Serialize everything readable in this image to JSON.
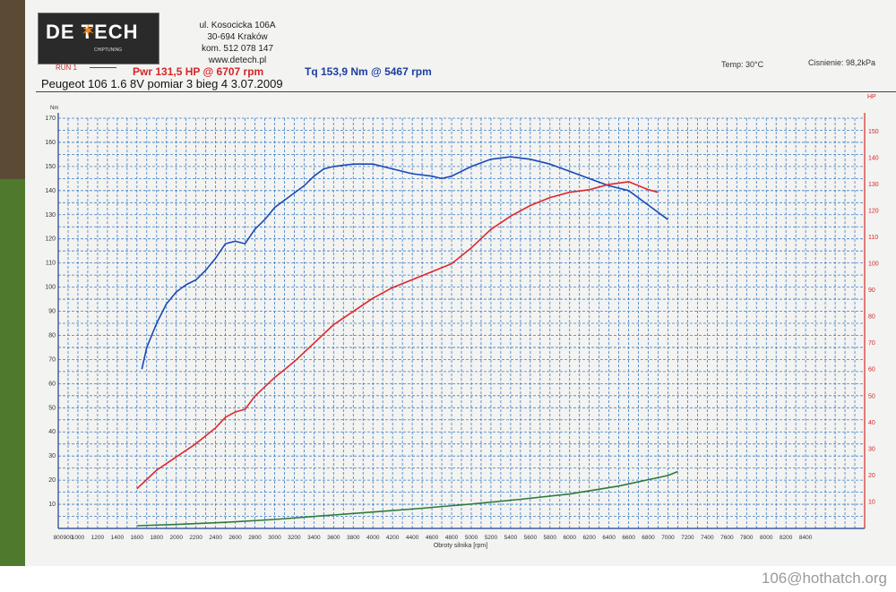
{
  "header": {
    "logo_text": "DE TECH",
    "logo_sub": "CHIPTUNING",
    "address": [
      "ul. Kosocicka 106A",
      "30-694 Kraków",
      "kom. 512 078 147",
      "www.detech.pl"
    ],
    "run_label": "RUN 1",
    "power_peak": "Pwr 131,5 HP @ 6707 rpm",
    "torque_peak": "Tq 153,9 Nm @ 5467 rpm",
    "temperature": "Temp: 30°C",
    "pressure": "Cisnienie: 98,2kPa",
    "car_info": "Peugeot 106 1.6 8V  pomiar 3 bieg 4   3.07.2009"
  },
  "watermark": "106@hothatch.org",
  "colors": {
    "torque": "#1a48b8",
    "power": "#e0262c",
    "loss": "#2f7a3a",
    "grid": "#3a7ec8",
    "right_axis": "#d42a2a"
  },
  "chart_data": {
    "type": "line",
    "xlabel": "Obroty silnika [rpm]",
    "ylabel_left": "Nm",
    "ylabel_right": "HP",
    "xlim": [
      800,
      9000
    ],
    "ylim_left": [
      0,
      170
    ],
    "ylim_right": [
      0,
      155
    ],
    "x_ticks": [
      800,
      900,
      1000,
      1200,
      1400,
      1600,
      1800,
      2000,
      2200,
      2400,
      2600,
      2800,
      3000,
      3200,
      3400,
      3600,
      3800,
      4000,
      4200,
      4400,
      4600,
      4800,
      5000,
      5200,
      5400,
      5600,
      5800,
      6000,
      6200,
      6400,
      6600,
      6800,
      7000,
      7200,
      7400,
      7600,
      7800,
      8000,
      8200,
      8400
    ],
    "y_ticks_left": [
      10,
      20,
      30,
      40,
      50,
      60,
      70,
      80,
      90,
      100,
      110,
      120,
      130,
      140,
      150,
      160,
      170
    ],
    "y_ticks_right": [
      10,
      20,
      30,
      40,
      50,
      60,
      70,
      80,
      90,
      100,
      110,
      120,
      130,
      140,
      150
    ],
    "series": [
      {
        "axis": "left",
        "x": [
          1650,
          1700,
          1800,
          1900,
          2000,
          2100,
          2200,
          2300,
          2400,
          2500,
          2600,
          2700,
          2800,
          2900,
          3000,
          3100,
          3200,
          3300,
          3400,
          3500,
          3600,
          3800,
          4000,
          4200,
          4400,
          4600,
          4700,
          4800,
          5000,
          5200,
          5400,
          5600,
          5800,
          6000,
          6200,
          6400,
          6600,
          6800,
          7000
        ],
        "y": [
          66,
          75,
          85,
          93,
          98,
          101,
          103,
          107,
          112,
          118,
          119,
          118,
          124,
          128,
          133,
          136,
          139,
          142,
          146,
          149,
          150,
          151,
          151,
          149,
          147,
          146,
          145,
          146,
          150,
          153,
          154,
          153,
          151,
          148,
          145,
          142,
          140,
          134,
          128
        ]
      },
      {
        "axis": "right",
        "x": [
          1600,
          1800,
          2000,
          2200,
          2400,
          2500,
          2600,
          2700,
          2800,
          3000,
          3200,
          3400,
          3600,
          3800,
          4000,
          4200,
          4400,
          4600,
          4800,
          5000,
          5200,
          5400,
          5600,
          5800,
          6000,
          6200,
          6400,
          6600,
          6800,
          6900
        ],
        "y": [
          15,
          22,
          27,
          32,
          38,
          42,
          44,
          45,
          50,
          57,
          63,
          70,
          77,
          82,
          87,
          91,
          94,
          97,
          100,
          106,
          113,
          118,
          122,
          125,
          127,
          128,
          130,
          131,
          128,
          127
        ]
      },
      {
        "axis": "right",
        "x": [
          1600,
          2000,
          2500,
          3000,
          3500,
          4000,
          4500,
          5000,
          5500,
          6000,
          6500,
          7000,
          7100
        ],
        "y": [
          1,
          1.5,
          2.3,
          3.4,
          4.8,
          6.2,
          7.6,
          9.2,
          11,
          13,
          16,
          20,
          21.5
        ]
      }
    ]
  }
}
